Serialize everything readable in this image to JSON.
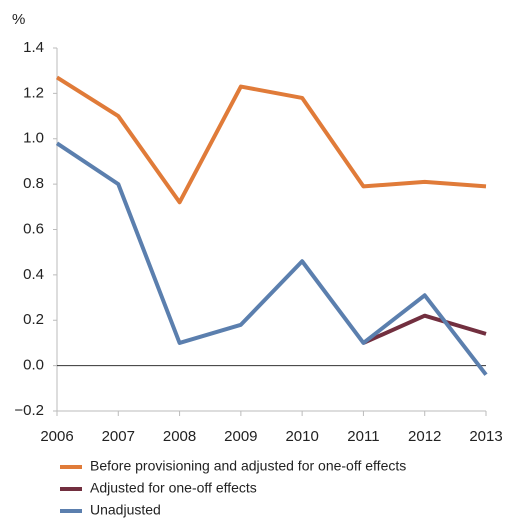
{
  "chart_data": {
    "type": "line",
    "y_label": "%",
    "x": [
      2006,
      2007,
      2008,
      2009,
      2010,
      2011,
      2012,
      2013
    ],
    "xlim": [
      2006,
      2013
    ],
    "xticks": [
      2006,
      2007,
      2008,
      2009,
      2010,
      2011,
      2012,
      2013
    ],
    "ylim": [
      -0.2,
      1.4
    ],
    "yticks": [
      {
        "value": -0.2,
        "label": "−0.2"
      },
      {
        "value": 0,
        "label": "0.0"
      },
      0.2,
      0.4,
      0.6,
      0.8,
      {
        "value": 1,
        "label": "1.0"
      },
      1.2,
      1.4
    ],
    "series": [
      {
        "name": "Before provisioning and adjusted for one-off effects",
        "color": "#e07b39",
        "values": [
          1.27,
          1.1,
          0.72,
          1.23,
          1.18,
          0.79,
          0.81,
          0.79
        ]
      },
      {
        "name": "Adjusted for one-off effects",
        "color": "#722f3f",
        "values": [
          null,
          null,
          null,
          null,
          null,
          0.1,
          0.22,
          0.14
        ]
      },
      {
        "name": "Unadjusted",
        "color": "#5b7fae",
        "values": [
          0.98,
          0.8,
          0.1,
          0.18,
          0.46,
          0.1,
          0.31,
          -0.04
        ]
      }
    ]
  }
}
